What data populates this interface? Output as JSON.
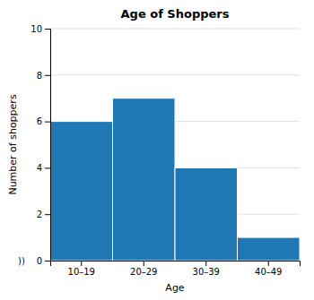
{
  "chart_data": {
    "type": "bar",
    "title": "Age of Shoppers",
    "xlabel": "Age",
    "ylabel": "Number of shoppers",
    "categories": [
      "10–19",
      "20–29",
      "30–39",
      "40–49"
    ],
    "values": [
      6,
      7,
      4,
      1
    ],
    "ylim": [
      0,
      10
    ],
    "yticks": [
      0,
      2,
      4,
      6,
      8,
      10
    ],
    "grid": true,
    "annotations": [
      "))"
    ]
  }
}
